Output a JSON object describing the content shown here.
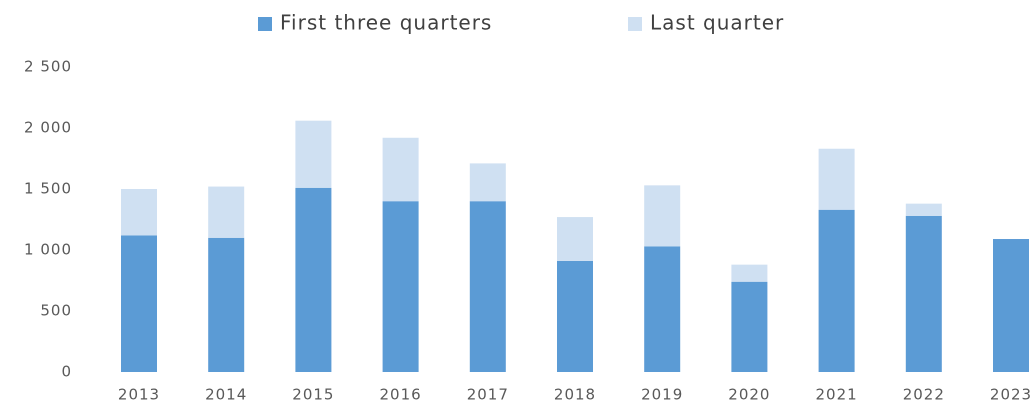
{
  "chart_data": {
    "type": "bar",
    "stacked": true,
    "categories": [
      "2013",
      "2014",
      "2015",
      "2016",
      "2017",
      "2018",
      "2019",
      "2020",
      "2021",
      "2022",
      "2023"
    ],
    "series": [
      {
        "name": "First three quarters",
        "color": "#5b9bd5",
        "values": [
          1120,
          1100,
          1510,
          1400,
          1400,
          910,
          1030,
          740,
          1330,
          1280,
          1090
        ]
      },
      {
        "name": "Last quarter",
        "color": "#cfe0f2",
        "values": [
          380,
          420,
          550,
          520,
          310,
          360,
          500,
          140,
          500,
          100,
          null
        ]
      }
    ],
    "ylim": [
      0,
      2500
    ],
    "yticks": [
      0,
      500,
      {
        "value": 1000,
        "label": "1 000"
      },
      {
        "value": 1500,
        "label": "1 500"
      },
      {
        "value": 2000,
        "label": "2 000"
      },
      {
        "value": 2500,
        "label": "2 500"
      }
    ],
    "grid": false,
    "legend": "top"
  }
}
